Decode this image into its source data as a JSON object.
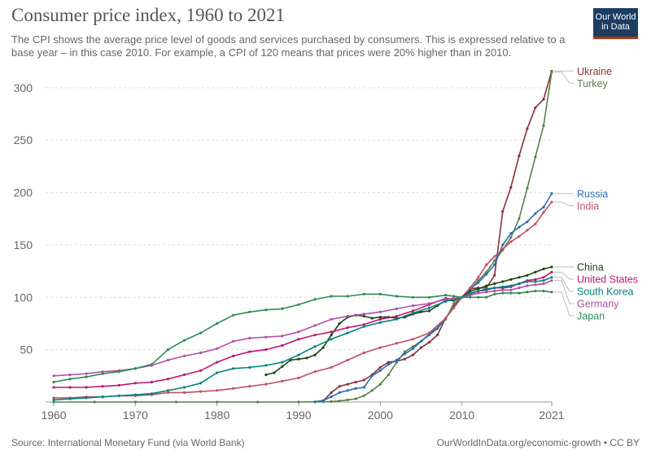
{
  "header": {
    "title": "Consumer price index, 1960 to 2021",
    "subtitle": "The CPI shows the average price level of goods and services purchased by consumers. This is expressed relative to a base year – in this case 2010. For example, a CPI of 120 means that prices were 20% higher than in 2010."
  },
  "logo": {
    "line1": "Our World",
    "line2": "in Data",
    "bg": "#1d3d63",
    "accent": "#b13507"
  },
  "footer": {
    "source": "Source: International Monetary Fund (via World Bank)",
    "credit": "OurWorldInData.org/economic-growth • CC BY"
  },
  "chart_data": {
    "type": "line",
    "title": "Consumer price index, 1960 to 2021",
    "xlim": [
      1959,
      2021
    ],
    "ylim": [
      0,
      310
    ],
    "x_ticks": [
      1960,
      1970,
      1980,
      1990,
      2000,
      2010,
      2021
    ],
    "y_ticks": [
      50,
      100,
      150,
      200,
      250,
      300
    ],
    "grid": "horizontal dashed",
    "legend": "right, labels at line ends",
    "series": [
      {
        "name": "Ukraine",
        "color": "#883039",
        "x": [
          1992,
          1993,
          1994,
          1995,
          1996,
          1997,
          1998,
          1999,
          2000,
          2001,
          2002,
          2003,
          2004,
          2005,
          2006,
          2007,
          2008,
          2009,
          2010,
          2011,
          2012,
          2013,
          2014,
          2015,
          2016,
          2017,
          2018,
          2019,
          2020,
          2021
        ],
        "y": [
          0.1,
          1,
          9,
          15,
          17,
          19,
          21,
          26,
          33,
          38,
          39,
          41,
          45,
          52,
          57,
          64,
          80,
          92,
          100,
          108,
          109,
          109,
          121,
          182,
          205,
          235,
          261,
          281,
          289,
          316
        ]
      },
      {
        "name": "Turkey",
        "color": "#578145",
        "x": [
          1960,
          1965,
          1970,
          1975,
          1980,
          1985,
          1990,
          1993,
          1994,
          1995,
          1996,
          1997,
          1998,
          1999,
          2000,
          2001,
          2002,
          2003,
          2004,
          2005,
          2006,
          2007,
          2008,
          2009,
          2010,
          2011,
          2012,
          2013,
          2014,
          2015,
          2016,
          2017,
          2018,
          2019,
          2020,
          2021
        ],
        "y": [
          0,
          0,
          0,
          0,
          0,
          0,
          0,
          0.2,
          0.5,
          1,
          2,
          3,
          6,
          11,
          17,
          26,
          38,
          48,
          53,
          58,
          65,
          71,
          79,
          94,
          100,
          107,
          116,
          124,
          135,
          145,
          157,
          175,
          204,
          234,
          264,
          315
        ]
      },
      {
        "name": "Russia",
        "color": "#286bbb",
        "x": [
          1992,
          1993,
          1994,
          1995,
          1996,
          1997,
          1998,
          1999,
          2000,
          2001,
          2002,
          2003,
          2004,
          2005,
          2006,
          2007,
          2008,
          2009,
          2010,
          2011,
          2012,
          2013,
          2014,
          2015,
          2016,
          2017,
          2018,
          2019,
          2020,
          2021
        ],
        "y": [
          0.2,
          1.5,
          5,
          9,
          11,
          13,
          14,
          25,
          30,
          36,
          40,
          46,
          51,
          58,
          64,
          70,
          80,
          90,
          100,
          108,
          114,
          122,
          131,
          150,
          161,
          167,
          172,
          180,
          186,
          199
        ]
      },
      {
        "name": "India",
        "color": "#c15065",
        "x": [
          1960,
          1962,
          1964,
          1966,
          1968,
          1970,
          1972,
          1974,
          1976,
          1978,
          1980,
          1982,
          1984,
          1986,
          1988,
          1990,
          1992,
          1994,
          1996,
          1998,
          2000,
          2002,
          2004,
          2006,
          2008,
          2009,
          2010,
          2011,
          2012,
          2013,
          2014,
          2015,
          2016,
          2017,
          2018,
          2019,
          2020,
          2021
        ],
        "y": [
          4,
          4,
          5,
          5,
          6,
          6,
          7,
          9,
          9,
          10,
          11,
          13,
          15,
          17,
          20,
          23,
          29,
          33,
          40,
          47,
          52,
          56,
          60,
          66,
          80,
          90,
          100,
          109,
          119,
          131,
          139,
          146,
          153,
          158,
          164,
          170,
          181,
          191
        ]
      },
      {
        "name": "China",
        "color": "#18470f",
        "x": [
          1986,
          1987,
          1988,
          1989,
          1990,
          1991,
          1992,
          1993,
          1994,
          1995,
          1996,
          1997,
          1998,
          1999,
          2000,
          2001,
          2002,
          2003,
          2004,
          2005,
          2006,
          2007,
          2008,
          2009,
          2010,
          2011,
          2012,
          2013,
          2014,
          2015,
          2016,
          2017,
          2018,
          2019,
          2020,
          2021
        ],
        "y": [
          26,
          28,
          34,
          40,
          41,
          42,
          45,
          52,
          64,
          75,
          81,
          83,
          82,
          80,
          81,
          81,
          80,
          81,
          84,
          86,
          87,
          92,
          97,
          97,
          100,
          106,
          108,
          111,
          113,
          115,
          117,
          119,
          121,
          124,
          127,
          129
        ]
      },
      {
        "name": "United States",
        "color": "#be1670",
        "x": [
          1960,
          1962,
          1964,
          1966,
          1968,
          1970,
          1972,
          1974,
          1976,
          1978,
          1980,
          1982,
          1984,
          1986,
          1988,
          1990,
          1992,
          1994,
          1996,
          1998,
          2000,
          2002,
          2004,
          2006,
          2008,
          2009,
          2010,
          2011,
          2012,
          2013,
          2014,
          2015,
          2016,
          2017,
          2018,
          2019,
          2020,
          2021
        ],
        "y": [
          14,
          14,
          14,
          15,
          16,
          18,
          19,
          22,
          26,
          30,
          38,
          44,
          48,
          50,
          54,
          60,
          64,
          67,
          71,
          74,
          79,
          82,
          87,
          93,
          99,
          98,
          100,
          103,
          106,
          107,
          109,
          109,
          110,
          113,
          116,
          117,
          119,
          124
        ]
      },
      {
        "name": "South Korea",
        "color": "#00847e",
        "x": [
          1960,
          1962,
          1964,
          1966,
          1968,
          1970,
          1972,
          1974,
          1976,
          1978,
          1980,
          1982,
          1984,
          1986,
          1988,
          1990,
          1992,
          1994,
          1996,
          1998,
          2000,
          2002,
          2004,
          2006,
          2008,
          2009,
          2010,
          2011,
          2012,
          2013,
          2014,
          2015,
          2016,
          2017,
          2018,
          2019,
          2020,
          2021
        ],
        "y": [
          2,
          3,
          4,
          5,
          6,
          7,
          8,
          11,
          14,
          18,
          28,
          32,
          33,
          35,
          38,
          45,
          53,
          60,
          66,
          72,
          76,
          79,
          85,
          90,
          96,
          98,
          100,
          104,
          106,
          108,
          109,
          110,
          111,
          113,
          115,
          115,
          116,
          119
        ]
      },
      {
        "name": "Germany",
        "color": "#b04fa8",
        "x": [
          1960,
          1962,
          1964,
          1966,
          1968,
          1970,
          1972,
          1974,
          1976,
          1978,
          1980,
          1982,
          1984,
          1986,
          1988,
          1990,
          1992,
          1994,
          1996,
          1998,
          2000,
          2002,
          2004,
          2006,
          2008,
          2009,
          2010,
          2011,
          2012,
          2013,
          2014,
          2015,
          2016,
          2017,
          2018,
          2019,
          2020,
          2021
        ],
        "y": [
          25,
          26,
          27,
          29,
          30,
          32,
          35,
          40,
          44,
          47,
          51,
          58,
          61,
          62,
          63,
          67,
          73,
          79,
          82,
          84,
          86,
          89,
          92,
          94,
          98,
          99,
          100,
          102,
          104,
          105,
          106,
          107,
          107,
          109,
          111,
          112,
          113,
          116
        ]
      },
      {
        "name": "Japan",
        "color": "#2e8b57",
        "x": [
          1960,
          1962,
          1964,
          1966,
          1968,
          1970,
          1972,
          1974,
          1976,
          1978,
          1980,
          1982,
          1984,
          1986,
          1988,
          1990,
          1992,
          1994,
          1996,
          1998,
          2000,
          2002,
          2004,
          2006,
          2008,
          2009,
          2010,
          2011,
          2012,
          2013,
          2014,
          2015,
          2016,
          2017,
          2018,
          2019,
          2020,
          2021
        ],
        "y": [
          19,
          22,
          24,
          27,
          29,
          32,
          36,
          50,
          59,
          66,
          75,
          83,
          86,
          88,
          89,
          93,
          98,
          101,
          101,
          103,
          103,
          101,
          100,
          100,
          102,
          101,
          100,
          100,
          100,
          100,
          103,
          104,
          104,
          104,
          105,
          106,
          106,
          105
        ]
      }
    ]
  }
}
